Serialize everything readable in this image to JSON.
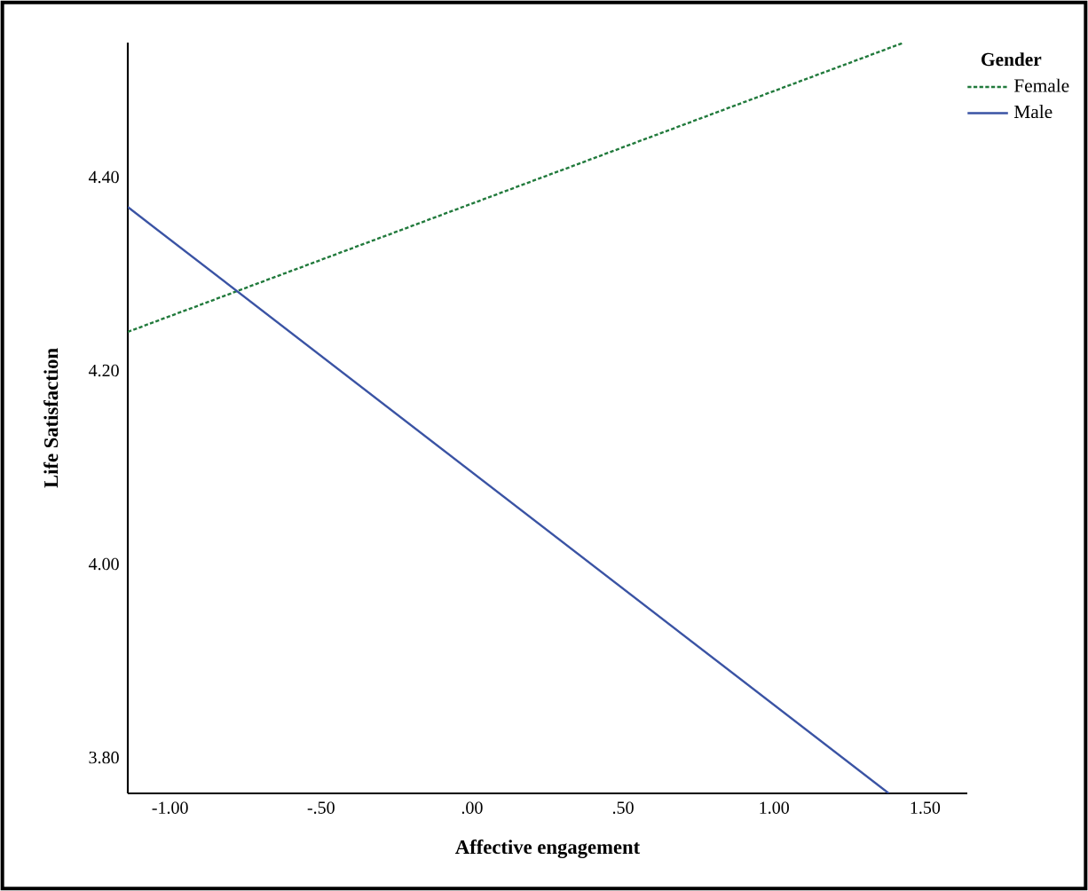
{
  "chart_data": {
    "type": "line",
    "xlabel": "Affective engagement",
    "ylabel": "Life Satisfaction",
    "legend_title": "Gender",
    "legend": "top right",
    "xlim": [
      -1.14,
      1.64
    ],
    "ylim": [
      3.763,
      4.539
    ],
    "xticks": [
      {
        "value": -1,
        "label": "-1.00"
      },
      {
        "value": -0.5,
        "label": "-.50"
      },
      {
        "value": 0,
        "label": ".00"
      },
      {
        "value": 0.5,
        "label": ".50"
      },
      {
        "value": 1,
        "label": "1.00"
      },
      {
        "value": 1.5,
        "label": "1.50"
      }
    ],
    "yticks": [
      {
        "value": 3.8,
        "label": "3.80"
      },
      {
        "value": 4.0,
        "label": "4.00"
      },
      {
        "value": 4.2,
        "label": "4.20"
      },
      {
        "value": 4.4,
        "label": "4.40"
      }
    ],
    "series": [
      {
        "name": "Female",
        "color": "#217a3c",
        "line_style": "dotted",
        "x": [
          -1.14,
          1.43
        ],
        "values": [
          4.24,
          4.539
        ]
      },
      {
        "name": "Male",
        "color": "#3a53a4",
        "line_style": "solid",
        "x": [
          -1.14,
          1.38
        ],
        "values": [
          4.369,
          3.763
        ]
      }
    ]
  }
}
